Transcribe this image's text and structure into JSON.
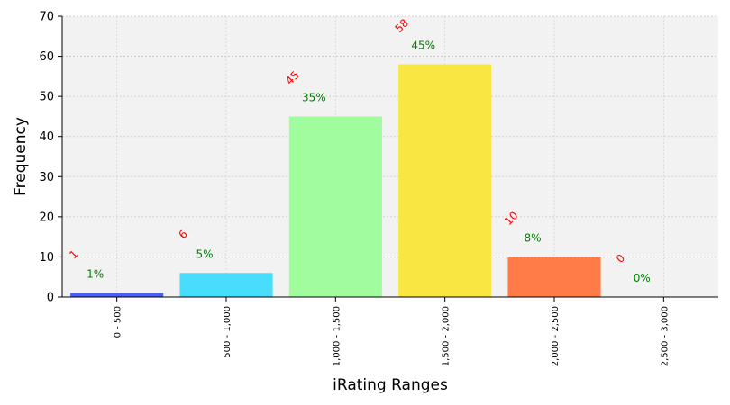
{
  "chart_data": {
    "type": "bar",
    "title": "",
    "xlabel": "iRating Ranges",
    "ylabel": "Frequency",
    "ylim": [
      0,
      70
    ],
    "yticks": [
      0,
      10,
      20,
      30,
      40,
      50,
      60,
      70
    ],
    "grid": true,
    "categories": [
      "0 - 500",
      "500 - 1,000",
      "1,000 - 1,500",
      "1,500 - 2,000",
      "2,000 - 2,500",
      "2,500 - 3,000"
    ],
    "values": [
      1,
      6,
      45,
      58,
      10,
      0
    ],
    "count_labels": [
      "1",
      "6",
      "45",
      "58",
      "10",
      "0"
    ],
    "percent_labels": [
      "1%",
      "5%",
      "35%",
      "45%",
      "8%",
      "0%"
    ],
    "bar_colors": [
      "#4a5ff0",
      "#48dcfd",
      "#a0fc9c",
      "#fae642",
      "#ff7c48",
      "#e6e6e6"
    ],
    "count_label_color": "#ff0000",
    "percent_label_color": "#008000",
    "plot_background": "#f2f2f2"
  }
}
